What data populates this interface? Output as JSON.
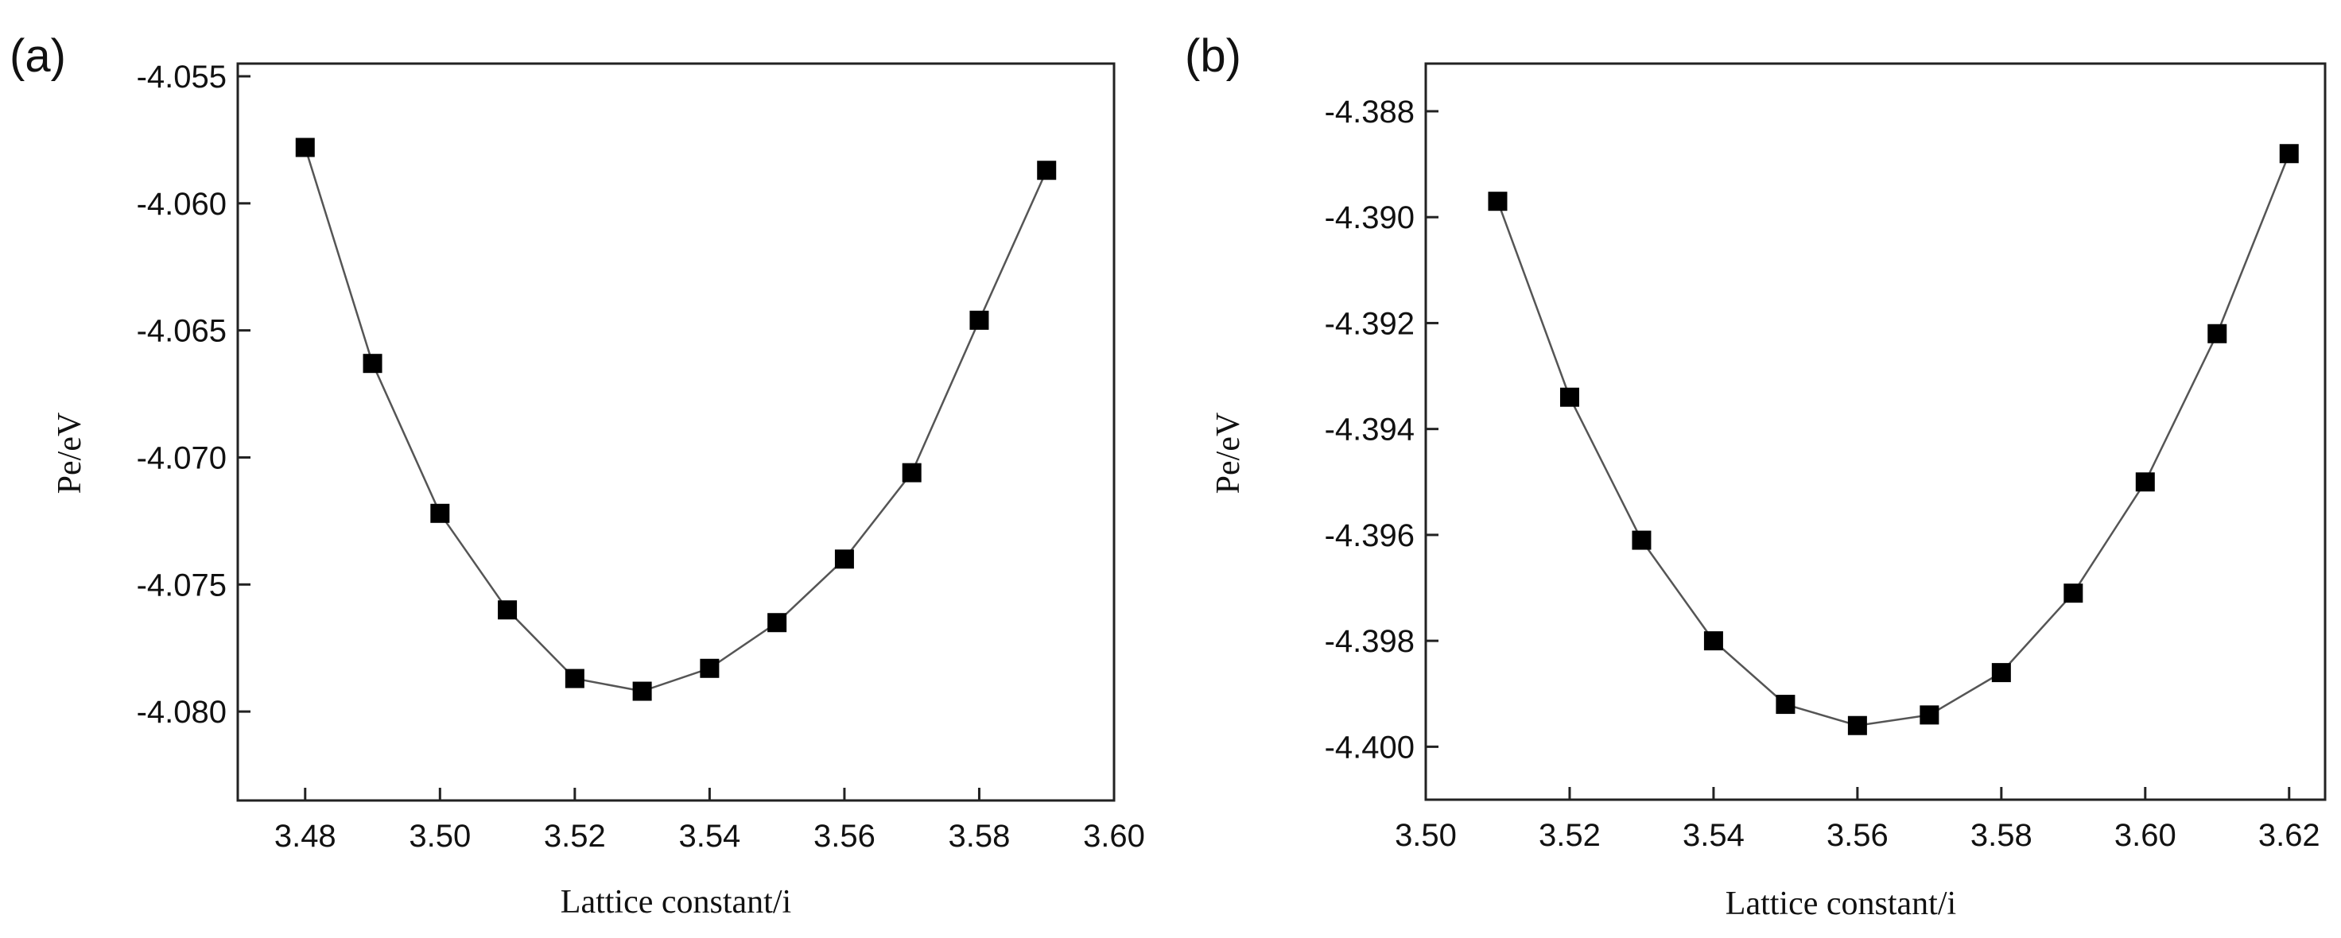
{
  "chart_data": [
    {
      "type": "line",
      "panel_label": "(a)",
      "xlabel": "Lattice constant/i",
      "ylabel": "Pe/eV",
      "xlim": [
        3.47,
        3.6
      ],
      "ylim": [
        -4.0835,
        -4.0545
      ],
      "xticks": [
        3.48,
        3.5,
        3.52,
        3.54,
        3.56,
        3.58,
        3.6
      ],
      "xtick_labels": [
        "3.48",
        "3.50",
        "3.52",
        "3.54",
        "3.56",
        "3.58",
        "3.60"
      ],
      "yticks": [
        -4.055,
        -4.06,
        -4.065,
        -4.07,
        -4.075,
        -4.08
      ],
      "ytick_labels": [
        "-4.055",
        "-4.060",
        "-4.065",
        "-4.070",
        "-4.075",
        "-4.080"
      ],
      "marker": "square",
      "series": [
        {
          "name": "Pe",
          "x": [
            3.48,
            3.49,
            3.5,
            3.51,
            3.52,
            3.53,
            3.54,
            3.55,
            3.56,
            3.57,
            3.58,
            3.59
          ],
          "values": [
            -4.0578,
            -4.0663,
            -4.0722,
            -4.076,
            -4.0787,
            -4.0792,
            -4.0783,
            -4.0765,
            -4.074,
            -4.0706,
            -4.0646,
            -4.0587
          ]
        }
      ]
    },
    {
      "type": "line",
      "panel_label": "(b)",
      "xlabel": "Lattice constant/i",
      "ylabel": "Pe/eV",
      "xlim": [
        3.5,
        3.625
      ],
      "ylim": [
        -4.401,
        -4.3871
      ],
      "xticks": [
        3.5,
        3.52,
        3.54,
        3.56,
        3.58,
        3.6,
        3.62
      ],
      "xtick_labels": [
        "3.50",
        "3.52",
        "3.54",
        "3.56",
        "3.58",
        "3.60",
        "3.62"
      ],
      "yticks": [
        -4.388,
        -4.39,
        -4.392,
        -4.394,
        -4.396,
        -4.398,
        -4.4
      ],
      "ytick_labels": [
        "-4.388",
        "-4.390",
        "-4.392",
        "-4.394",
        "-4.396",
        "-4.398",
        "-4.400"
      ],
      "marker": "square",
      "series": [
        {
          "name": "Pe",
          "x": [
            3.51,
            3.52,
            3.53,
            3.54,
            3.55,
            3.56,
            3.57,
            3.58,
            3.59,
            3.6,
            3.61,
            3.62
          ],
          "values": [
            -4.3897,
            -4.3934,
            -4.3961,
            -4.398,
            -4.3992,
            -4.3996,
            -4.3994,
            -4.3986,
            -4.3971,
            -4.395,
            -4.3922,
            -4.3888
          ]
        }
      ]
    }
  ]
}
